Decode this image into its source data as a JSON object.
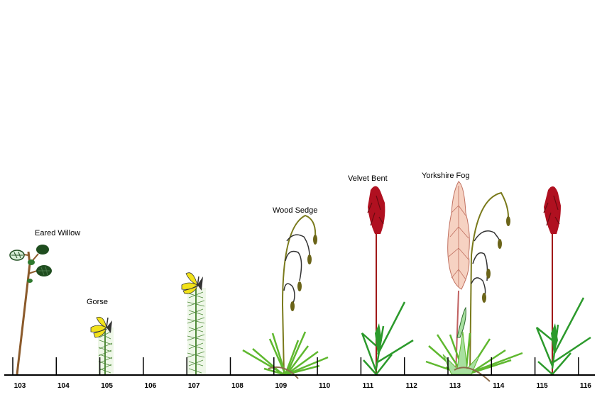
{
  "axis": {
    "tick_labels": [
      "103",
      "104",
      "105",
      "106",
      "107",
      "108",
      "109",
      "110",
      "111",
      "112",
      "113",
      "114",
      "115",
      "116"
    ]
  },
  "plants": [
    {
      "label": "Eared Willow",
      "icon": "eared-willow-icon"
    },
    {
      "label": "Gorse",
      "icon": "gorse-icon"
    },
    {
      "label": "Wood Sedge",
      "icon": "wood-sedge-icon"
    },
    {
      "label": "Velvet Bent",
      "icon": "velvet-bent-icon"
    },
    {
      "label": "Yorkshire Fog",
      "icon": "yorkshire-fog-icon"
    }
  ],
  "colors": {
    "willow_stem": "#8b5a2b",
    "willow_leaf": "#1f4d1f",
    "gorse_flower": "#f2e21a",
    "gorse_stem": "#4f8a3a",
    "sedge_stem": "#7a7a1c",
    "sedge_spike": "#6b6419",
    "grass_leaf": "#5fb82f",
    "velvet_bent_head": "#b01020",
    "velvet_bent_stem": "#a01818",
    "yorkshire_fog_head": "#f6d2c2",
    "axis": "#000000"
  }
}
